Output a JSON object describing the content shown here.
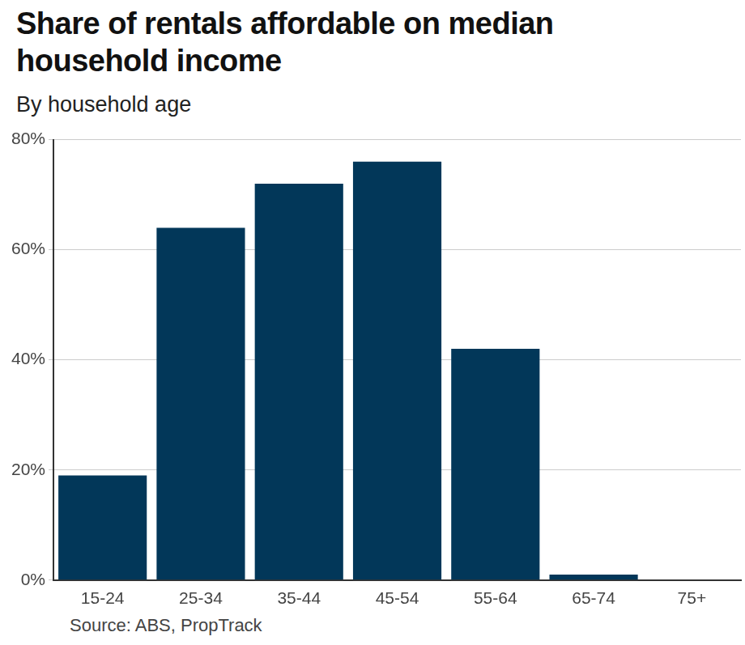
{
  "chart_data": {
    "type": "bar",
    "title": "Share of rentals affordable on median household income",
    "subtitle": "By household age",
    "source": "Source: ABS, PropTrack",
    "categories": [
      "15-24",
      "25-34",
      "35-44",
      "45-54",
      "55-64",
      "65-74",
      "75+"
    ],
    "values": [
      19,
      64,
      72,
      76,
      42,
      1,
      0
    ],
    "color": "#023759",
    "ylim": [
      0,
      80
    ],
    "yticks": [
      {
        "value": 0,
        "label": "0%"
      },
      {
        "value": 20,
        "label": "20%"
      },
      {
        "value": 40,
        "label": "40%"
      },
      {
        "value": 60,
        "label": "60%"
      },
      {
        "value": 80,
        "label": "80%"
      }
    ],
    "grid": true
  }
}
